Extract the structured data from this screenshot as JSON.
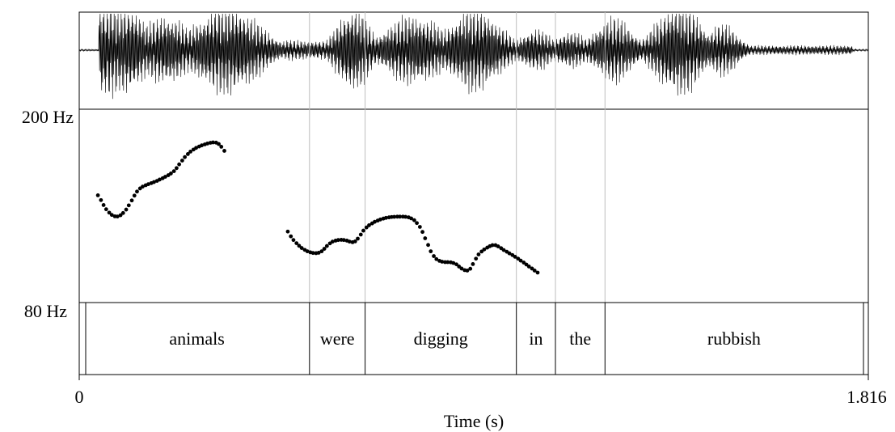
{
  "chart_data": {
    "type": "scatter",
    "title": "",
    "xlabel": "Time (s)",
    "ylabel": "",
    "x_tick_labels": [
      "0",
      "1.816"
    ],
    "xlim": [
      0,
      1.816
    ],
    "ylim": [
      80,
      200
    ],
    "y_scale": "log",
    "y_tick_labels": [
      "200 Hz",
      "80 Hz"
    ],
    "grid": false,
    "series": [
      {
        "name": "",
        "points": [
          [
            0.043,
            133
          ],
          [
            0.05,
            130
          ],
          [
            0.056,
            127
          ],
          [
            0.062,
            124.5
          ],
          [
            0.069,
            122.5
          ],
          [
            0.075,
            121.2
          ],
          [
            0.082,
            120.4
          ],
          [
            0.088,
            120.3
          ],
          [
            0.095,
            121
          ],
          [
            0.101,
            122.3
          ],
          [
            0.108,
            124.3
          ],
          [
            0.114,
            126.8
          ],
          [
            0.121,
            129.8
          ],
          [
            0.127,
            132.8
          ],
          [
            0.133,
            135.4
          ],
          [
            0.14,
            137.4
          ],
          [
            0.146,
            138.6
          ],
          [
            0.153,
            139.5
          ],
          [
            0.159,
            140.2
          ],
          [
            0.166,
            140.9
          ],
          [
            0.172,
            141.6
          ],
          [
            0.179,
            142.4
          ],
          [
            0.185,
            143.3
          ],
          [
            0.192,
            144.2
          ],
          [
            0.198,
            145.2
          ],
          [
            0.205,
            146.3
          ],
          [
            0.211,
            147.5
          ],
          [
            0.218,
            149.1
          ],
          [
            0.224,
            151.3
          ],
          [
            0.23,
            154.0
          ],
          [
            0.237,
            156.8
          ],
          [
            0.243,
            159.4
          ],
          [
            0.25,
            161.7
          ],
          [
            0.256,
            163.6
          ],
          [
            0.263,
            165.2
          ],
          [
            0.269,
            166.5
          ],
          [
            0.276,
            167.6
          ],
          [
            0.282,
            168.5
          ],
          [
            0.289,
            169.3
          ],
          [
            0.295,
            170.0
          ],
          [
            0.302,
            170.6
          ],
          [
            0.308,
            170.9
          ],
          [
            0.315,
            170.7
          ],
          [
            0.321,
            169.6
          ],
          [
            0.327,
            167.4
          ],
          [
            0.334,
            164.2
          ],
          [
            0.48,
            112.0
          ],
          [
            0.487,
            109.5
          ],
          [
            0.493,
            107.6
          ],
          [
            0.5,
            106.0
          ],
          [
            0.506,
            104.7
          ],
          [
            0.512,
            103.6
          ],
          [
            0.519,
            102.7
          ],
          [
            0.525,
            102.0
          ],
          [
            0.532,
            101.5
          ],
          [
            0.538,
            101.2
          ],
          [
            0.545,
            101.1
          ],
          [
            0.551,
            101.3
          ],
          [
            0.558,
            102.0
          ],
          [
            0.564,
            103.2
          ],
          [
            0.57,
            104.6
          ],
          [
            0.577,
            105.9
          ],
          [
            0.583,
            106.8
          ],
          [
            0.59,
            107.3
          ],
          [
            0.596,
            107.6
          ],
          [
            0.603,
            107.7
          ],
          [
            0.609,
            107.6
          ],
          [
            0.616,
            107.3
          ],
          [
            0.622,
            106.8
          ],
          [
            0.629,
            106.5
          ],
          [
            0.635,
            106.9
          ],
          [
            0.641,
            108.3
          ],
          [
            0.648,
            110.4
          ],
          [
            0.654,
            112.5
          ],
          [
            0.661,
            114.2
          ],
          [
            0.667,
            115.4
          ],
          [
            0.674,
            116.4
          ],
          [
            0.68,
            117.3
          ],
          [
            0.687,
            118.0
          ],
          [
            0.693,
            118.6
          ],
          [
            0.7,
            119.1
          ],
          [
            0.706,
            119.5
          ],
          [
            0.713,
            119.8
          ],
          [
            0.719,
            120.0
          ],
          [
            0.725,
            120.1
          ],
          [
            0.732,
            120.2
          ],
          [
            0.738,
            120.2
          ],
          [
            0.745,
            120.2
          ],
          [
            0.751,
            120.1
          ],
          [
            0.758,
            119.8
          ],
          [
            0.764,
            119.2
          ],
          [
            0.771,
            118.2
          ],
          [
            0.777,
            116.6
          ],
          [
            0.784,
            114.5
          ],
          [
            0.79,
            111.8
          ],
          [
            0.796,
            108.5
          ],
          [
            0.803,
            105.1
          ],
          [
            0.809,
            102.0
          ],
          [
            0.816,
            99.7
          ],
          [
            0.822,
            98.3
          ],
          [
            0.829,
            97.5
          ],
          [
            0.835,
            97.1
          ],
          [
            0.842,
            96.9
          ],
          [
            0.848,
            96.9
          ],
          [
            0.855,
            96.8
          ],
          [
            0.861,
            96.5
          ],
          [
            0.868,
            95.9
          ],
          [
            0.874,
            94.9
          ],
          [
            0.88,
            94.0
          ],
          [
            0.887,
            93.3
          ],
          [
            0.893,
            93.1
          ],
          [
            0.9,
            93.9
          ],
          [
            0.906,
            96.0
          ],
          [
            0.913,
            98.5
          ],
          [
            0.919,
            100.5
          ],
          [
            0.926,
            101.9
          ],
          [
            0.932,
            102.9
          ],
          [
            0.939,
            103.8
          ],
          [
            0.945,
            104.5
          ],
          [
            0.951,
            105.0
          ],
          [
            0.958,
            105.0
          ],
          [
            0.964,
            104.4
          ],
          [
            0.971,
            103.5
          ],
          [
            0.977,
            102.6
          ],
          [
            0.984,
            101.8
          ],
          [
            0.99,
            101.0
          ],
          [
            0.997,
            100.2
          ],
          [
            1.003,
            99.4
          ],
          [
            1.01,
            98.5
          ],
          [
            1.016,
            97.6
          ],
          [
            1.023,
            96.7
          ],
          [
            1.029,
            95.8
          ],
          [
            1.035,
            94.9
          ],
          [
            1.042,
            94.0
          ],
          [
            1.048,
            93.1
          ],
          [
            1.055,
            92.2
          ]
        ]
      }
    ],
    "annotations": {
      "words": [
        {
          "text": "animals",
          "start": 0.012,
          "end": 0.53
        },
        {
          "text": "were",
          "start": 0.53,
          "end": 0.658
        },
        {
          "text": "digging",
          "start": 0.658,
          "end": 1.006
        },
        {
          "text": "in",
          "start": 1.006,
          "end": 1.096
        },
        {
          "text": "the",
          "start": 1.096,
          "end": 1.21
        },
        {
          "text": "rubbish",
          "start": 1.21,
          "end": 1.804
        }
      ]
    }
  }
}
